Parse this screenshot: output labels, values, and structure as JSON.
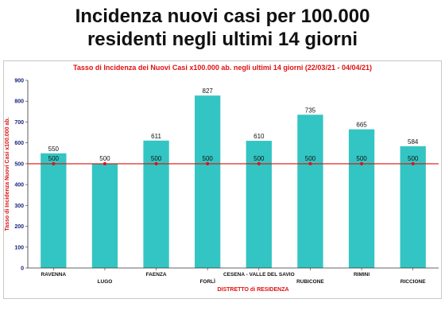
{
  "slide": {
    "title_line1": "Incidenza nuovi casi per 100.000",
    "title_line2": "residenti negli ultimi 14 giorni"
  },
  "chart_data": {
    "type": "bar",
    "title": "Tasso di Incidenza dei Nuovi Casi x100.000 ab. negli ultimi 14 giorni (22/03/21 - 04/04/21)",
    "xlabel": "DISTRETTO di RESIDENZA",
    "ylabel": "Tasso di Incidenza Nuovi Casi x100.000 ab.",
    "categories": [
      "RAVENNA",
      "LUGO",
      "FAENZA",
      "FORLÌ",
      "CESENA - VALLE DEL SAVIO",
      "RUBICONE",
      "RIMINI",
      "RICCIONE"
    ],
    "series": [
      {
        "values": [
          550,
          500,
          611,
          827,
          610,
          735,
          665,
          584
        ]
      }
    ],
    "reference_line": {
      "value": 500,
      "labels": [
        "500",
        "500",
        "500",
        "500",
        "500",
        "500",
        "500",
        "500"
      ]
    },
    "ylim": [
      0,
      900
    ],
    "yticks": [
      0,
      100,
      200,
      300,
      400,
      500,
      600,
      700,
      800,
      900
    ],
    "grid": false,
    "legend": "none",
    "colors": {
      "bar": "#33c5c3",
      "reference_line": "#e01010",
      "marker": "#e01010",
      "axis_title": "#e01010",
      "tick_label": "#1a237e"
    }
  }
}
